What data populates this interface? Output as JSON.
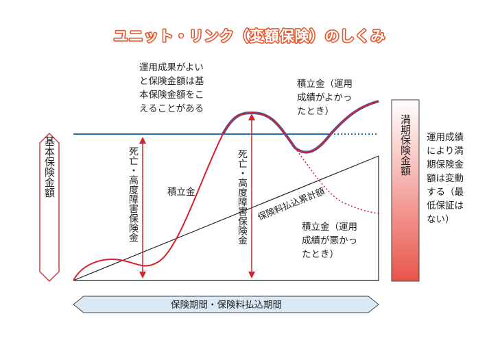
{
  "title": "ユニット・リンク（変額保険）のしくみ",
  "left_box_label": "基本保険金額",
  "right_box_label": "満期保険金額",
  "note_top": [
    "運用成果がよい",
    "と保険金額は基",
    "本保険金額をこ",
    "えることがある"
  ],
  "note_good": [
    "積立金（運用",
    "成績がよかっ",
    "たとき）"
  ],
  "note_bad": [
    "積立金（運用",
    "成績が悪かっ",
    "たとき）"
  ],
  "note_right": [
    "運用成績",
    "により満",
    "期保険金",
    "額は変動",
    "する（最",
    "低保証は",
    "ない）"
  ],
  "vertical_label_1": "死亡・高度障害保険金",
  "vertical_label_2": "死亡・高度障害保険金",
  "reserve_label": "積立金",
  "premium_total_label": "保険料払込累計額",
  "period_label": "保険期間・保険料払込期間",
  "colors": {
    "title_orange": "#e8552a",
    "reserve_red": "#d8202a",
    "base_line_blue": "#1f6fb3",
    "good_curve_blue": "#3b5fae",
    "left_box_border": "#cc3333",
    "right_box_top": "#ffffff",
    "right_box_bottom": "#e8554a",
    "period_bar_fill": "#dbe9f5"
  }
}
